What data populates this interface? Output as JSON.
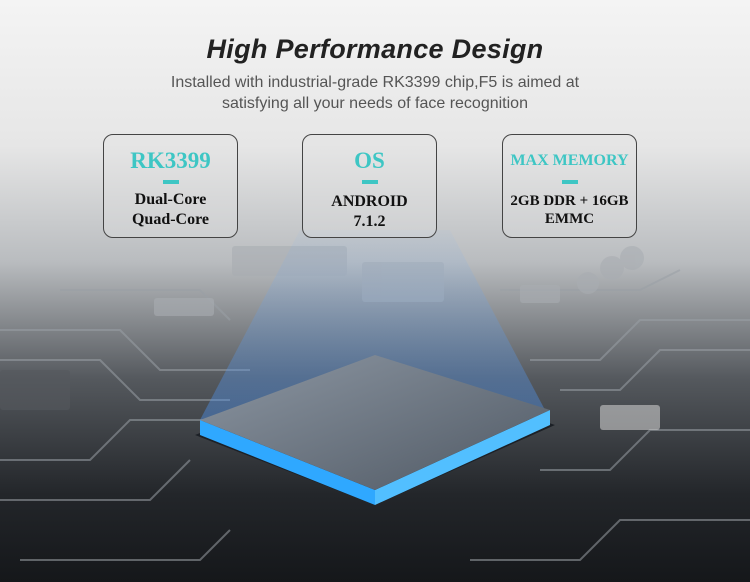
{
  "header": {
    "title": "High Performance Design",
    "subtitle_line1": "Installed with industrial-grade RK3399 chip,F5 is aimed at",
    "subtitle_line2": "satisfying all your needs of face recognition"
  },
  "cards": [
    {
      "heading": "RK3399",
      "line1": "Dual-Core",
      "line2": "Quad-Core"
    },
    {
      "heading": "OS",
      "line1": "ANDROID",
      "line2": "7.1.2"
    },
    {
      "heading": "MAX MEMORY",
      "line1": "2GB DDR + 16GB",
      "line2": "EMMC"
    }
  ],
  "colors": {
    "accent": "#3ec6c4",
    "chip_glow": "#2fa8ff"
  }
}
